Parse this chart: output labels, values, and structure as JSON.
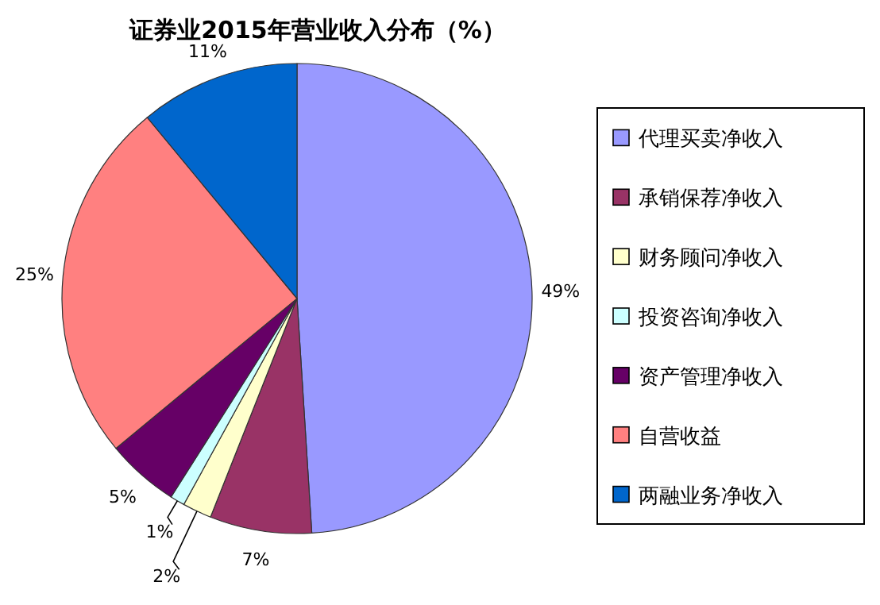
{
  "chart_data": {
    "type": "pie",
    "title": "证券业2015年营业收入分布（%）",
    "categories": [
      "代理买卖净收入",
      "承销保荐净收入",
      "财务顾问净收入",
      "投资咨询净收入",
      "资产管理净收入",
      "自营收益",
      "两融业务净收入"
    ],
    "values": [
      49,
      7,
      2,
      1,
      5,
      25,
      11
    ],
    "colors": [
      "#9999ff",
      "#993366",
      "#ffffcc",
      "#ccffff",
      "#660066",
      "#ff8080",
      "#0066cc"
    ],
    "value_labels": [
      "49%",
      "7%",
      "2%",
      "1%",
      "5%",
      "25%",
      "11%"
    ],
    "legend": "right"
  }
}
